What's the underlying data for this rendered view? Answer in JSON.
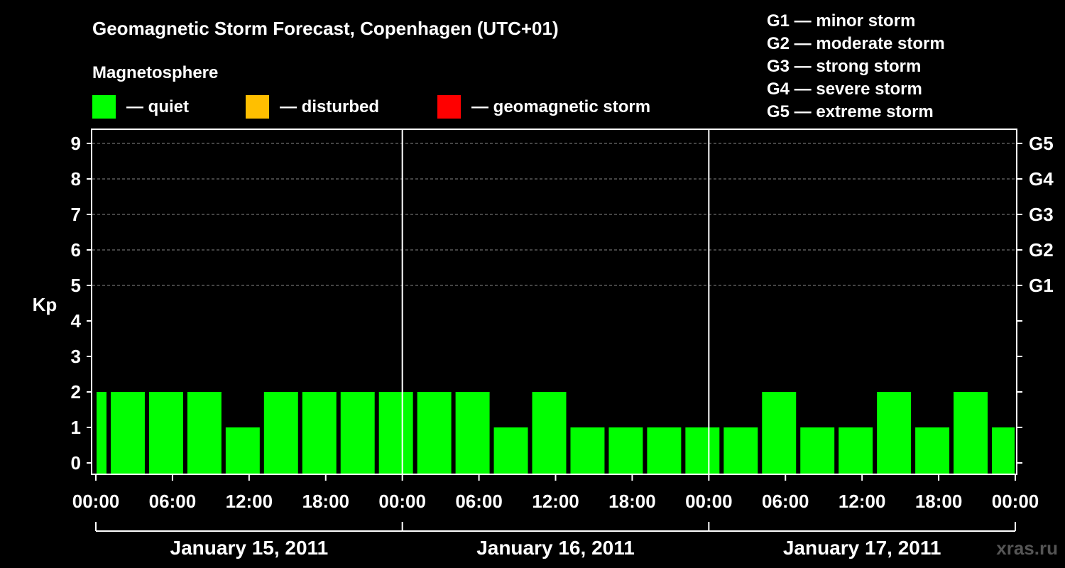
{
  "chart_data": {
    "type": "bar",
    "title": "Geomagnetic Storm Forecast, Copenhagen (UTC+01)",
    "ylabel": "Kp",
    "ylim": [
      0,
      9
    ],
    "yticks": [
      "0",
      "1",
      "2",
      "3",
      "4",
      "5",
      "6",
      "7",
      "8",
      "9"
    ],
    "storm_ticks": [
      {
        "kp": 5,
        "label": "G1"
      },
      {
        "kp": 6,
        "label": "G2"
      },
      {
        "kp": 7,
        "label": "G3"
      },
      {
        "kp": 8,
        "label": "G4"
      },
      {
        "kp": 9,
        "label": "G5"
      }
    ],
    "storm_scale": [
      "G1 — minor storm",
      "G2 — moderate storm",
      "G3 — strong storm",
      "G4 — severe storm",
      "G5 — extreme storm"
    ],
    "legend_title": "Magnetosphere",
    "legend": [
      {
        "label": "— quiet",
        "color": "#00ff00"
      },
      {
        "label": "— disturbed",
        "color": "#ffbf00"
      },
      {
        "label": "— geomagnetic storm",
        "color": "#ff0000"
      }
    ],
    "xticks": [
      "00:00",
      "06:00",
      "12:00",
      "18:00",
      "00:00",
      "06:00",
      "12:00",
      "18:00",
      "00:00",
      "06:00",
      "12:00",
      "18:00",
      "00:00"
    ],
    "days": [
      "January 15, 2011",
      "January 16, 2011",
      "January 17, 2011"
    ],
    "time_offset_hours": 1,
    "bar_interval_hours": 3,
    "values": [
      2,
      2,
      2,
      2,
      1,
      2,
      2,
      2,
      2,
      2,
      2,
      1,
      2,
      1,
      1,
      1,
      1,
      1,
      2,
      1,
      1,
      2,
      1,
      2,
      1
    ],
    "bar_color": "#00ff00",
    "watermark": "xras.ru"
  }
}
